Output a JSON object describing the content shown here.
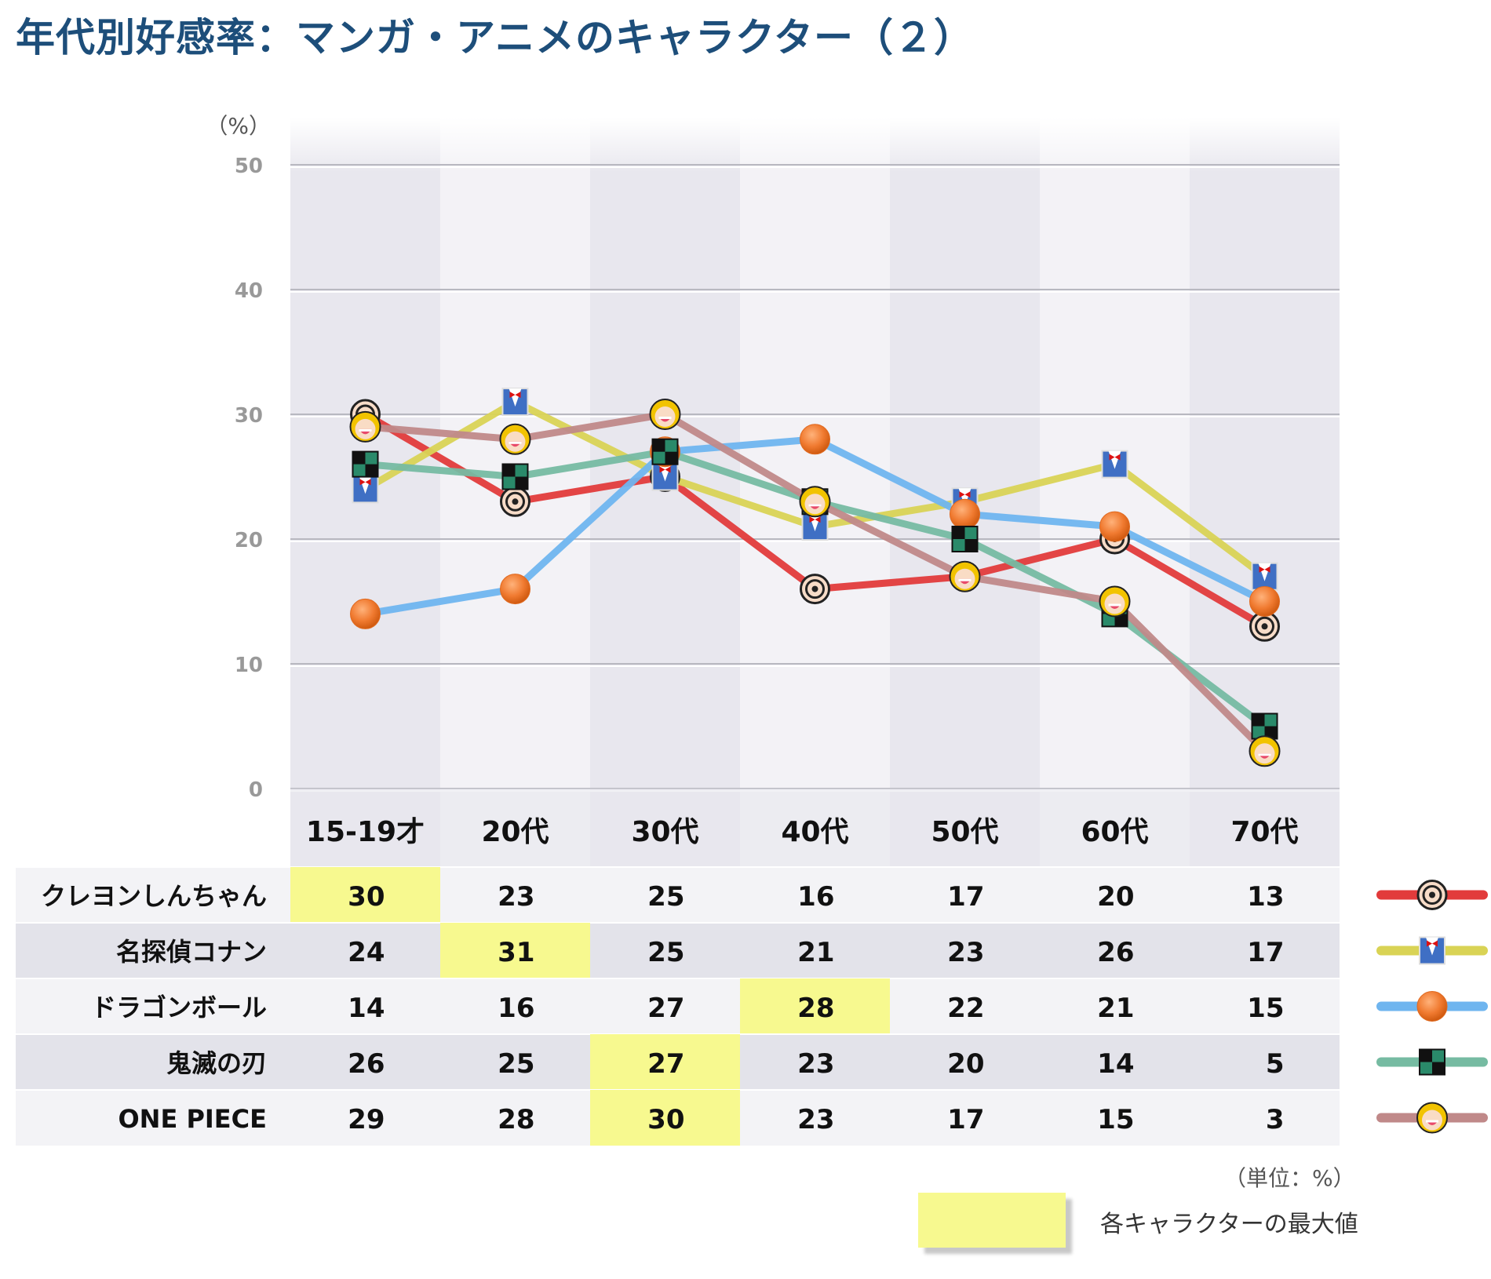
{
  "title": "年代別好感率：マンガ・アニメのキャラクター（２）",
  "unit_label": "（単位：%）",
  "legend_max_label": "各キャラクターの最大値",
  "colors": {
    "highlight": "#f7f98f",
    "band_dark": "#e8e7ee",
    "band_light": "#f3f2f6"
  },
  "chart_data": {
    "type": "line",
    "ylabel": "（%）",
    "ylim": [
      0,
      50
    ],
    "yticks": [
      "0",
      "10",
      "20",
      "30",
      "40",
      "50"
    ],
    "grid": true,
    "categories": [
      "15-19才",
      "20代",
      "30代",
      "40代",
      "50代",
      "60代",
      "70代"
    ],
    "series": [
      {
        "name": "クレヨンしんちゃん",
        "color": "#e23b3b",
        "marker": "shinchan-face-icon",
        "values": [
          30,
          23,
          25,
          16,
          17,
          20,
          13
        ],
        "labels": [
          "30",
          "23",
          "25",
          "16",
          "17",
          "20",
          "13"
        ]
      },
      {
        "name": "名探偵コナン",
        "color": "#d9d355",
        "marker": "conan-suit-icon",
        "values": [
          24,
          31,
          25,
          21,
          23,
          26,
          17
        ],
        "labels": [
          "24",
          "31",
          "25",
          "21",
          "23",
          "26",
          "17"
        ]
      },
      {
        "name": "ドラゴンボール",
        "color": "#6fb5ef",
        "marker": "dragon-ball-icon",
        "values": [
          14,
          16,
          27,
          28,
          22,
          21,
          15
        ],
        "labels": [
          "14",
          "16",
          "27",
          "28",
          "22",
          "21",
          "15"
        ]
      },
      {
        "name": "鬼滅の刃",
        "color": "#76bba2",
        "marker": "checkered-pattern-icon",
        "values": [
          26,
          25,
          27,
          23,
          20,
          14,
          5
        ],
        "labels": [
          "26",
          "25",
          "27",
          "23",
          "20",
          "14",
          "5"
        ]
      },
      {
        "name": "ONE PIECE",
        "color": "#c08989",
        "marker": "luffy-face-icon",
        "values": [
          29,
          28,
          30,
          23,
          17,
          15,
          3
        ],
        "labels": [
          "29",
          "28",
          "30",
          "23",
          "17",
          "15",
          "3"
        ]
      }
    ]
  }
}
